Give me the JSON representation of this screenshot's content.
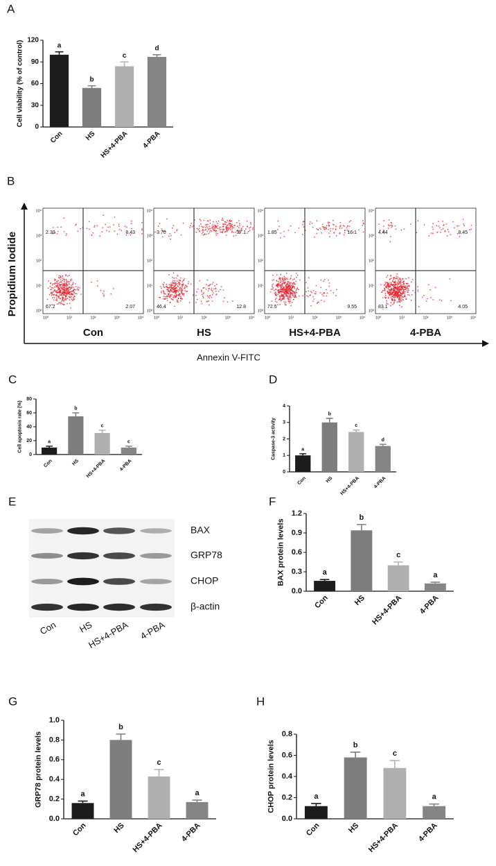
{
  "chart_data": [
    {
      "type": "bar",
      "panel": "A",
      "ylabel": "Cell viability (% of control)",
      "categories": [
        "Con",
        "HS",
        "HS+4-PBA",
        "4-PBA"
      ],
      "values": [
        100,
        54,
        84,
        97
      ],
      "errors": [
        4,
        3,
        6,
        3
      ],
      "letters": [
        "a",
        "b",
        "c",
        "d"
      ],
      "colors": [
        "#1c1c1c",
        "#7d7d7d",
        "#b0b0b0",
        "#858585"
      ],
      "ylim": [
        0,
        120
      ],
      "yticks": [
        0,
        30,
        60,
        90,
        120
      ]
    },
    {
      "type": "bar",
      "panel": "C",
      "ylabel": "Cell apoptosis rate (%)",
      "categories": [
        "Con",
        "HS",
        "HS+4-PBA",
        "4-PBA"
      ],
      "values": [
        10,
        55,
        31,
        10
      ],
      "errors": [
        2,
        5,
        4,
        2
      ],
      "letters": [
        "a",
        "b",
        "c",
        "c"
      ],
      "colors": [
        "#1c1c1c",
        "#7d7d7d",
        "#b0b0b0",
        "#858585"
      ],
      "ylim": [
        0,
        80
      ],
      "yticks": [
        0,
        20,
        40,
        60,
        80
      ]
    },
    {
      "type": "bar",
      "panel": "D",
      "ylabel": "Caspase-3 activity",
      "categories": [
        "Con",
        "HS",
        "HS+4-PBA",
        "4-PBA"
      ],
      "values": [
        1.0,
        3.0,
        2.42,
        1.57
      ],
      "errors": [
        0.1,
        0.25,
        0.12,
        0.1
      ],
      "letters": [
        "a",
        "b",
        "c",
        "d"
      ],
      "colors": [
        "#1c1c1c",
        "#7d7d7d",
        "#b0b0b0",
        "#858585"
      ],
      "ylim": [
        0,
        4
      ],
      "yticks": [
        0,
        1,
        2,
        3,
        4
      ]
    },
    {
      "type": "bar",
      "panel": "F",
      "ylabel": "BAX protein levels",
      "categories": [
        "Con",
        "HS",
        "HS+4-PBA",
        "4-PBA"
      ],
      "values": [
        0.16,
        0.94,
        0.4,
        0.12
      ],
      "errors": [
        0.02,
        0.09,
        0.05,
        0.02
      ],
      "letters": [
        "a",
        "b",
        "c",
        "a"
      ],
      "colors": [
        "#1c1c1c",
        "#7d7d7d",
        "#b0b0b0",
        "#858585"
      ],
      "ylim": [
        0,
        1.2
      ],
      "yticks": [
        {
          "value": 0,
          "label": "0.0"
        },
        0.3,
        0.6,
        0.9,
        1.2
      ]
    },
    {
      "type": "bar",
      "panel": "G",
      "ylabel": "GRP78 protein levels",
      "categories": [
        "Con",
        "HS",
        "HS+4-PBA",
        "4-PBA"
      ],
      "values": [
        0.16,
        0.8,
        0.43,
        0.17
      ],
      "errors": [
        0.02,
        0.06,
        0.07,
        0.02
      ],
      "letters": [
        "a",
        "b",
        "c",
        "a"
      ],
      "colors": [
        "#1c1c1c",
        "#7d7d7d",
        "#b0b0b0",
        "#858585"
      ],
      "ylim": [
        0,
        1.0
      ],
      "yticks": [
        {
          "value": 0,
          "label": "0.0"
        },
        0.2,
        0.4,
        0.6,
        0.8,
        {
          "value": 1,
          "label": "1.0"
        }
      ]
    },
    {
      "type": "bar",
      "panel": "H",
      "ylabel": "CHOP protein levels",
      "categories": [
        "Con",
        "HS",
        "HS+4-PBA",
        "4-PBA"
      ],
      "values": [
        0.12,
        0.58,
        0.48,
        0.12
      ],
      "errors": [
        0.025,
        0.05,
        0.07,
        0.02
      ],
      "letters": [
        "a",
        "b",
        "c",
        "a"
      ],
      "colors": [
        "#1c1c1c",
        "#7d7d7d",
        "#b0b0b0",
        "#858585"
      ],
      "ylim": [
        0,
        0.8
      ],
      "yticks": [
        {
          "value": 0,
          "label": "0.0"
        },
        0.2,
        0.4,
        0.6,
        0.8
      ]
    }
  ],
  "flow": {
    "panel": "B",
    "ylabel": "Propidium Iodide",
    "xlabel": "Annexin V-FITC",
    "decades": [
      "10⁰",
      "10¹",
      "10²",
      "10³",
      "10⁴"
    ],
    "plots": [
      {
        "name": "Con",
        "quadrants": [
          "2.30",
          "8.43",
          "67.2",
          "2.07"
        ]
      },
      {
        "name": "HS",
        "quadrants": [
          "3.70",
          "37.1",
          "46.4",
          "12.8"
        ]
      },
      {
        "name": "HS+4-PBA",
        "quadrants": [
          "1.85",
          "16.1",
          "72.5",
          "9.55"
        ]
      },
      {
        "name": "4-PBA",
        "quadrants": [
          "4.44",
          "8.45",
          "83.1",
          "4.05"
        ]
      }
    ]
  },
  "blot": {
    "panel": "E",
    "proteins": [
      "BAX",
      "GRP78",
      "CHOP",
      "β-actin"
    ],
    "lanes": [
      "Con",
      "HS",
      "HS+4-PBA",
      "4-PBA"
    ]
  }
}
